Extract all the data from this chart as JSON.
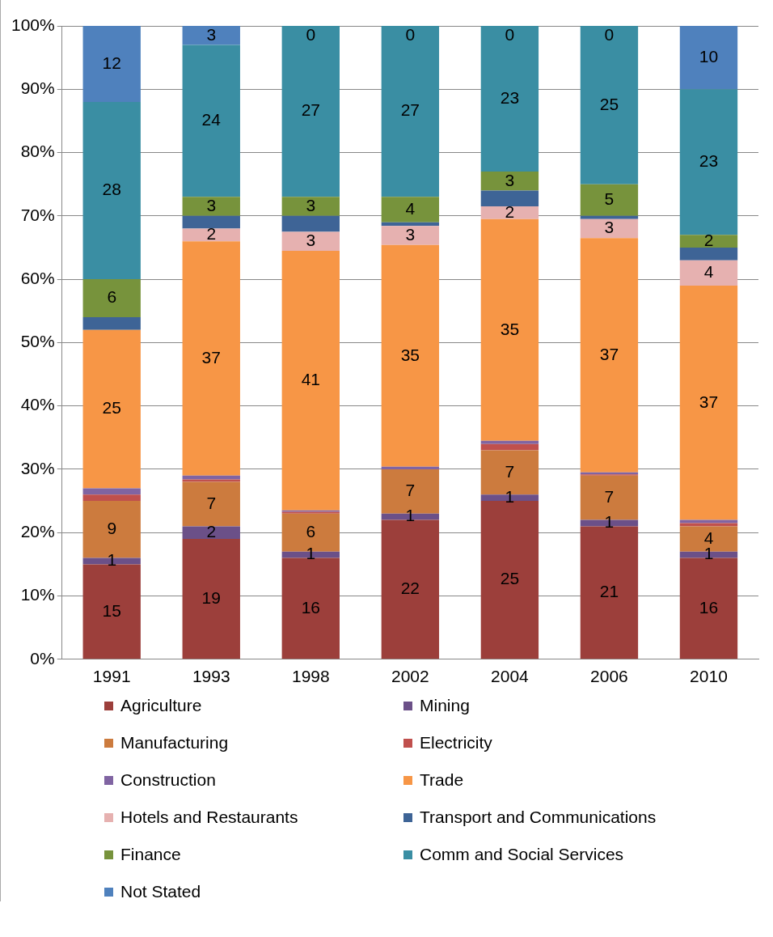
{
  "chart_data": {
    "type": "bar",
    "stacked": true,
    "categories": [
      "1991",
      "1993",
      "1998",
      "2002",
      "2004",
      "2006",
      "2010"
    ],
    "ylim": [
      0,
      100
    ],
    "yticks": [
      {
        "value": 0,
        "label": "0%"
      },
      {
        "value": 10,
        "label": "10%"
      },
      {
        "value": 20,
        "label": "20%"
      },
      {
        "value": 30,
        "label": "30%"
      },
      {
        "value": 40,
        "label": "40%"
      },
      {
        "value": 50,
        "label": "50%"
      },
      {
        "value": 60,
        "label": "60%"
      },
      {
        "value": 70,
        "label": "70%"
      },
      {
        "value": 80,
        "label": "80%"
      },
      {
        "value": 90,
        "label": "90%"
      },
      {
        "value": 100,
        "label": "100%"
      }
    ],
    "grid": "y",
    "legend": "bottom",
    "series": [
      {
        "name": "Agriculture",
        "color": "#9c3f3b",
        "values": [
          15,
          19,
          16,
          22,
          25,
          21,
          16
        ],
        "value_labels": [
          "15",
          "19",
          "16",
          "22",
          "25",
          "21",
          "16"
        ]
      },
      {
        "name": "Mining",
        "color": "#6b5088",
        "values": [
          1,
          2,
          1,
          1,
          1,
          1,
          1
        ],
        "value_labels": [
          "1",
          "2",
          "1",
          "1",
          "1",
          "1",
          "1"
        ]
      },
      {
        "name": "Manufacturing",
        "color": "#cc7b3e",
        "values": [
          9,
          7,
          6,
          7,
          7,
          7,
          4
        ],
        "value_labels": [
          "9",
          "7",
          "6",
          "7",
          "7",
          "7",
          "4"
        ]
      },
      {
        "name": "Electricity",
        "color": "#c0504d",
        "values": [
          1,
          0.4,
          0.3,
          0,
          1,
          0.2,
          0.5
        ],
        "value_labels": [
          null,
          null,
          null,
          null,
          null,
          null,
          null
        ]
      },
      {
        "name": "Construction",
        "color": "#8064a2",
        "values": [
          1,
          0.6,
          0.2,
          0.4,
          0.5,
          0.3,
          0.5
        ],
        "value_labels": [
          null,
          null,
          null,
          null,
          null,
          null,
          null
        ]
      },
      {
        "name": "Trade",
        "color": "#f79646",
        "values": [
          25,
          37,
          41,
          35,
          35,
          37,
          37
        ],
        "value_labels": [
          "25",
          "37",
          "41",
          "35",
          "35",
          "37",
          "37"
        ]
      },
      {
        "name": "Hotels and Restaurants",
        "color": "#e6b1b0",
        "values": [
          0,
          2,
          3,
          3,
          2,
          3,
          4
        ],
        "value_labels": [
          null,
          "2",
          "3",
          "3",
          "2",
          "3",
          "4"
        ]
      },
      {
        "name": "Transport and Communications",
        "color": "#3e6496",
        "values": [
          2,
          2,
          2.5,
          0.6,
          2.5,
          0.5,
          2
        ],
        "value_labels": [
          null,
          null,
          null,
          null,
          null,
          null,
          null
        ]
      },
      {
        "name": "Finance",
        "color": "#77933c",
        "values": [
          6,
          3,
          3,
          4,
          3,
          5,
          2
        ],
        "value_labels": [
          "6",
          "3",
          "3",
          "4",
          "3",
          "5",
          "2"
        ]
      },
      {
        "name": "Comm and Social Services",
        "color": "#3a8ea3",
        "values": [
          28,
          24,
          27,
          27,
          23,
          25,
          23
        ],
        "value_labels": [
          "28",
          "24",
          "27",
          "27",
          "23",
          "25",
          "23"
        ]
      },
      {
        "name": "Not Stated",
        "color": "#4f81bd",
        "values": [
          12,
          3,
          0,
          0,
          0,
          0,
          10
        ],
        "value_labels": [
          "12",
          "3",
          "0",
          "0",
          "0",
          "0",
          "10"
        ]
      }
    ]
  }
}
